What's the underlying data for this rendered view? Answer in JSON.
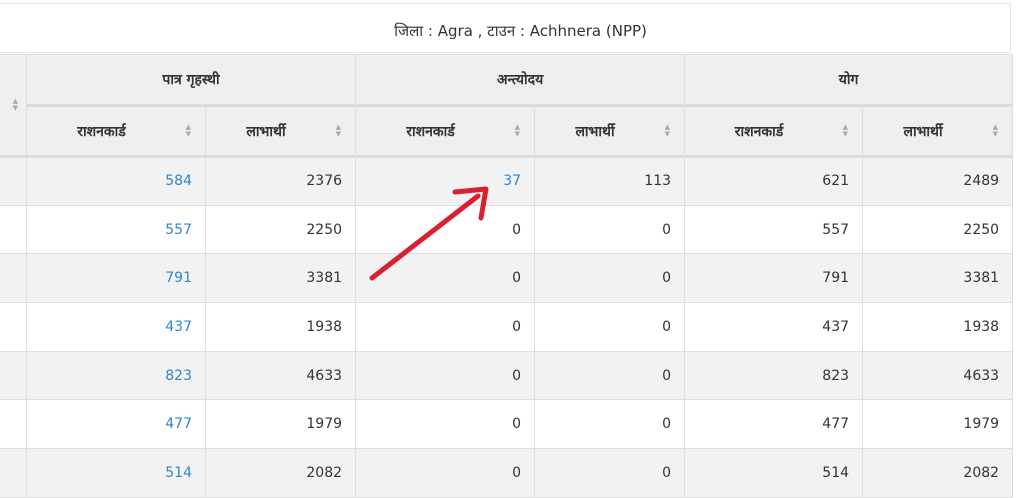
{
  "title": "जिला : Agra , टाउन : Achhnera (NPP)",
  "groups": [
    "पात्र गृहस्थी",
    "अन्त्योदय",
    "योग"
  ],
  "subheaders": [
    "राशनकार्ड",
    "लाभार्थी",
    "राशनकार्ड",
    "लाभार्थी",
    "राशनकार्ड",
    "लाभार्थी"
  ],
  "rows": [
    [
      "584",
      "2376",
      "37",
      "113",
      "621",
      "2489"
    ],
    [
      "557",
      "2250",
      "0",
      "0",
      "557",
      "2250"
    ],
    [
      "791",
      "3381",
      "0",
      "0",
      "791",
      "3381"
    ],
    [
      "437",
      "1938",
      "0",
      "0",
      "437",
      "1938"
    ],
    [
      "823",
      "4633",
      "0",
      "0",
      "823",
      "4633"
    ],
    [
      "477",
      "1979",
      "0",
      "0",
      "477",
      "1979"
    ],
    [
      "514",
      "2082",
      "0",
      "0",
      "514",
      "2082"
    ]
  ],
  "colors": {
    "link": "#2a87d0",
    "annotation_arrow": "#d9202f"
  },
  "icons": {
    "sort": "sort-arrows-icon",
    "annotation": "red-arrow-annotation"
  }
}
